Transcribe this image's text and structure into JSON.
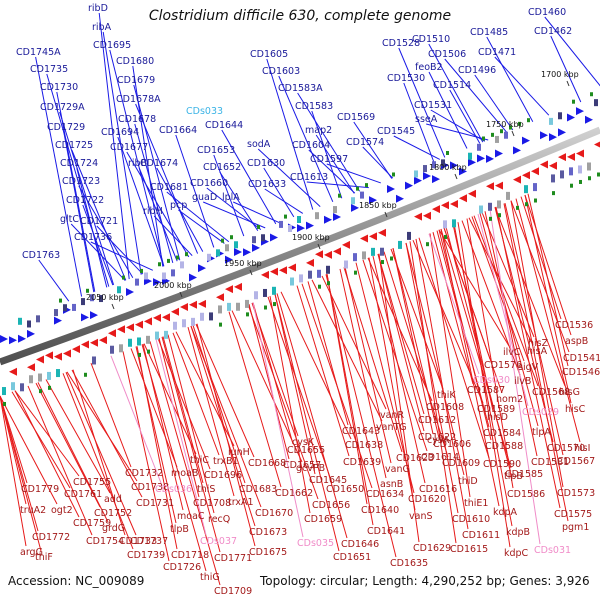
{
  "title": "Clostridium difficile 630, complete genome",
  "footer": {
    "accession": "Accession: NC_009089",
    "topology": "Topology: circular; Length: 4,290,252 bp; Genes: 3,926"
  },
  "colors": {
    "forward": "#1a1ae6",
    "reverse": "#e61a1a",
    "pseudo": "#f08cc8",
    "cds_cyan": "#3cb4e6",
    "backbone": "#8c8c8c",
    "gc_tick": "#1e8c1e"
  },
  "kbp_labels": [
    "1700 kbp",
    "1750 kbp",
    "1800 kbp",
    "1850 kbp",
    "1900 kbp",
    "1950 kbp",
    "2000 kbp",
    "2050 kbp"
  ],
  "forward_genes": [
    "ribD",
    "ribA",
    "CD1745A",
    "CD1695",
    "CD1735",
    "CD1680",
    "CD1730",
    "CD1679",
    "CD1729A",
    "CD1678A",
    "CD1729",
    "CD1678",
    "CD1694",
    "CD1725",
    "CD1677",
    "CD1724",
    "ribB",
    "CD1674",
    "CD1723",
    "CD1681",
    "CD1722",
    "ribH",
    "CD1721",
    "gltC",
    "CD1736",
    "CD1763",
    "CD1664",
    "pcp",
    "CD1660",
    "guaD",
    "CD1653",
    "CD1652",
    "lplA",
    "CD1644",
    "sodA",
    "CD1630",
    "CD1633",
    "CD1605",
    "CD1603",
    "CD1583A",
    "CD1583",
    "map2",
    "CD1604",
    "CD1597",
    "CD1613",
    "CD1574",
    "CD1569",
    "CD1545",
    "CD1531",
    "sseA",
    "CD1530",
    "feoB2",
    "CD1528",
    "CD1510",
    "CD1506",
    "CD1514",
    "CD1496",
    "CD1485",
    "CD1471",
    "CD1460",
    "CD1462"
  ],
  "forward_cyan": [
    "CDs033"
  ],
  "reverse_genes": [
    "CD1536",
    "aspB",
    "hisZ",
    "CD1541",
    "hisA",
    "ilvC",
    "CD1546",
    "CD1576",
    "sigV",
    "ilvB",
    "CD1568",
    "hisG",
    "CD1587",
    "hisC",
    "thiK",
    "hom2",
    "CD1608",
    "CD1589",
    "hisD",
    "CD1612",
    "CD1584",
    "tlpA",
    "vanR",
    "vanTG",
    "CD1643",
    "CD1622",
    "CD1588",
    "CD1570",
    "hisI",
    "CD1638",
    "cysA",
    "CD1606",
    "CD1581",
    "CD1567",
    "CD1614",
    "CD1590",
    "CD1655",
    "cysK",
    "CD1639",
    "CD1623",
    "CD1609",
    "CD1585",
    "CD1657",
    "vanG",
    "CD1616",
    "thiD",
    "tlpB",
    "gcvPB",
    "CD1645",
    "asnB",
    "CD1573",
    "CD1668",
    "CD1650",
    "CD1634",
    "thiE1",
    "CD1586",
    "CD1662",
    "CD1620",
    "CD1575",
    "CD1656",
    "CD1640",
    "vanS",
    "CD1610",
    "kdpA",
    "pgm1",
    "CD1670",
    "CD1659",
    "CD1641",
    "CD1611",
    "kdpB",
    "CD1673",
    "CD1646",
    "CD1629",
    "CD1615",
    "kdpC",
    "CD1675",
    "CD1651",
    "CD1635",
    "CD1732",
    "moaB",
    "thiC",
    "iunH",
    "CD1755",
    "CD1738",
    "thiS",
    "trxB1",
    "CD1696",
    "CD1761",
    "add",
    "CD1731",
    "CD1708",
    "trxA1",
    "CD1683",
    "CD1779",
    "CD1752",
    "grdG",
    "moaC",
    "recQ",
    "truA2",
    "ogt2",
    "CD1759",
    "CD1737",
    "tlpB",
    "argG",
    "CD1733",
    "CD1772",
    "CD1754",
    "CD1739",
    "CD1718",
    "CD1726",
    "thiF",
    "CD1771",
    "thiG",
    "CD1709"
  ],
  "reverse_pseudo": [
    "CDs030",
    "CDs029",
    "CDs036",
    "CDs037",
    "CDs035",
    "CDs031"
  ]
}
